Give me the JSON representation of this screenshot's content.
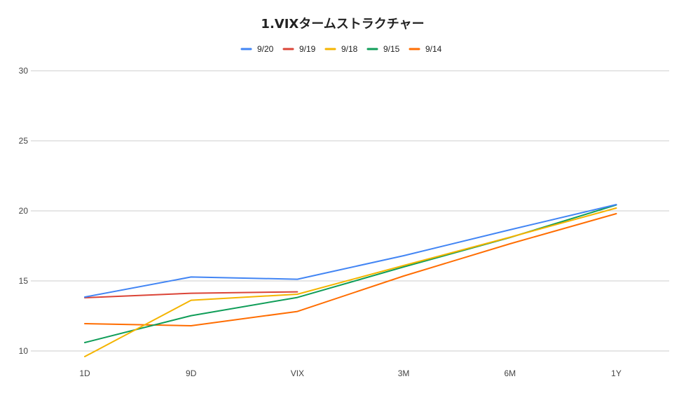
{
  "chart_data": {
    "type": "line",
    "title": "1.VIXタームストラクチャー",
    "xlabel": "",
    "ylabel": "",
    "categories": [
      "1D",
      "9D",
      "VIX",
      "3M",
      "6M",
      "1Y"
    ],
    "ylim": [
      10,
      30
    ],
    "yticks": [
      10,
      15,
      20,
      25,
      30
    ],
    "grid": true,
    "legend_position": "top",
    "series": [
      {
        "name": "9/20",
        "color": "#4285f4",
        "values": [
          13.85,
          15.28,
          15.12,
          16.8,
          18.65,
          20.45
        ]
      },
      {
        "name": "9/19",
        "color": "#db4437",
        "values": [
          13.8,
          14.12,
          14.22,
          null,
          null,
          null
        ]
      },
      {
        "name": "9/18",
        "color": "#f4b400",
        "values": [
          9.6,
          13.62,
          14.05,
          16.1,
          18.12,
          20.2
        ]
      },
      {
        "name": "9/15",
        "color": "#0f9d58",
        "values": [
          10.6,
          12.52,
          13.82,
          16.0,
          18.1,
          20.42
        ]
      },
      {
        "name": "9/14",
        "color": "#ff6d01",
        "values": [
          11.95,
          11.8,
          12.82,
          15.35,
          17.65,
          19.8
        ]
      }
    ]
  }
}
